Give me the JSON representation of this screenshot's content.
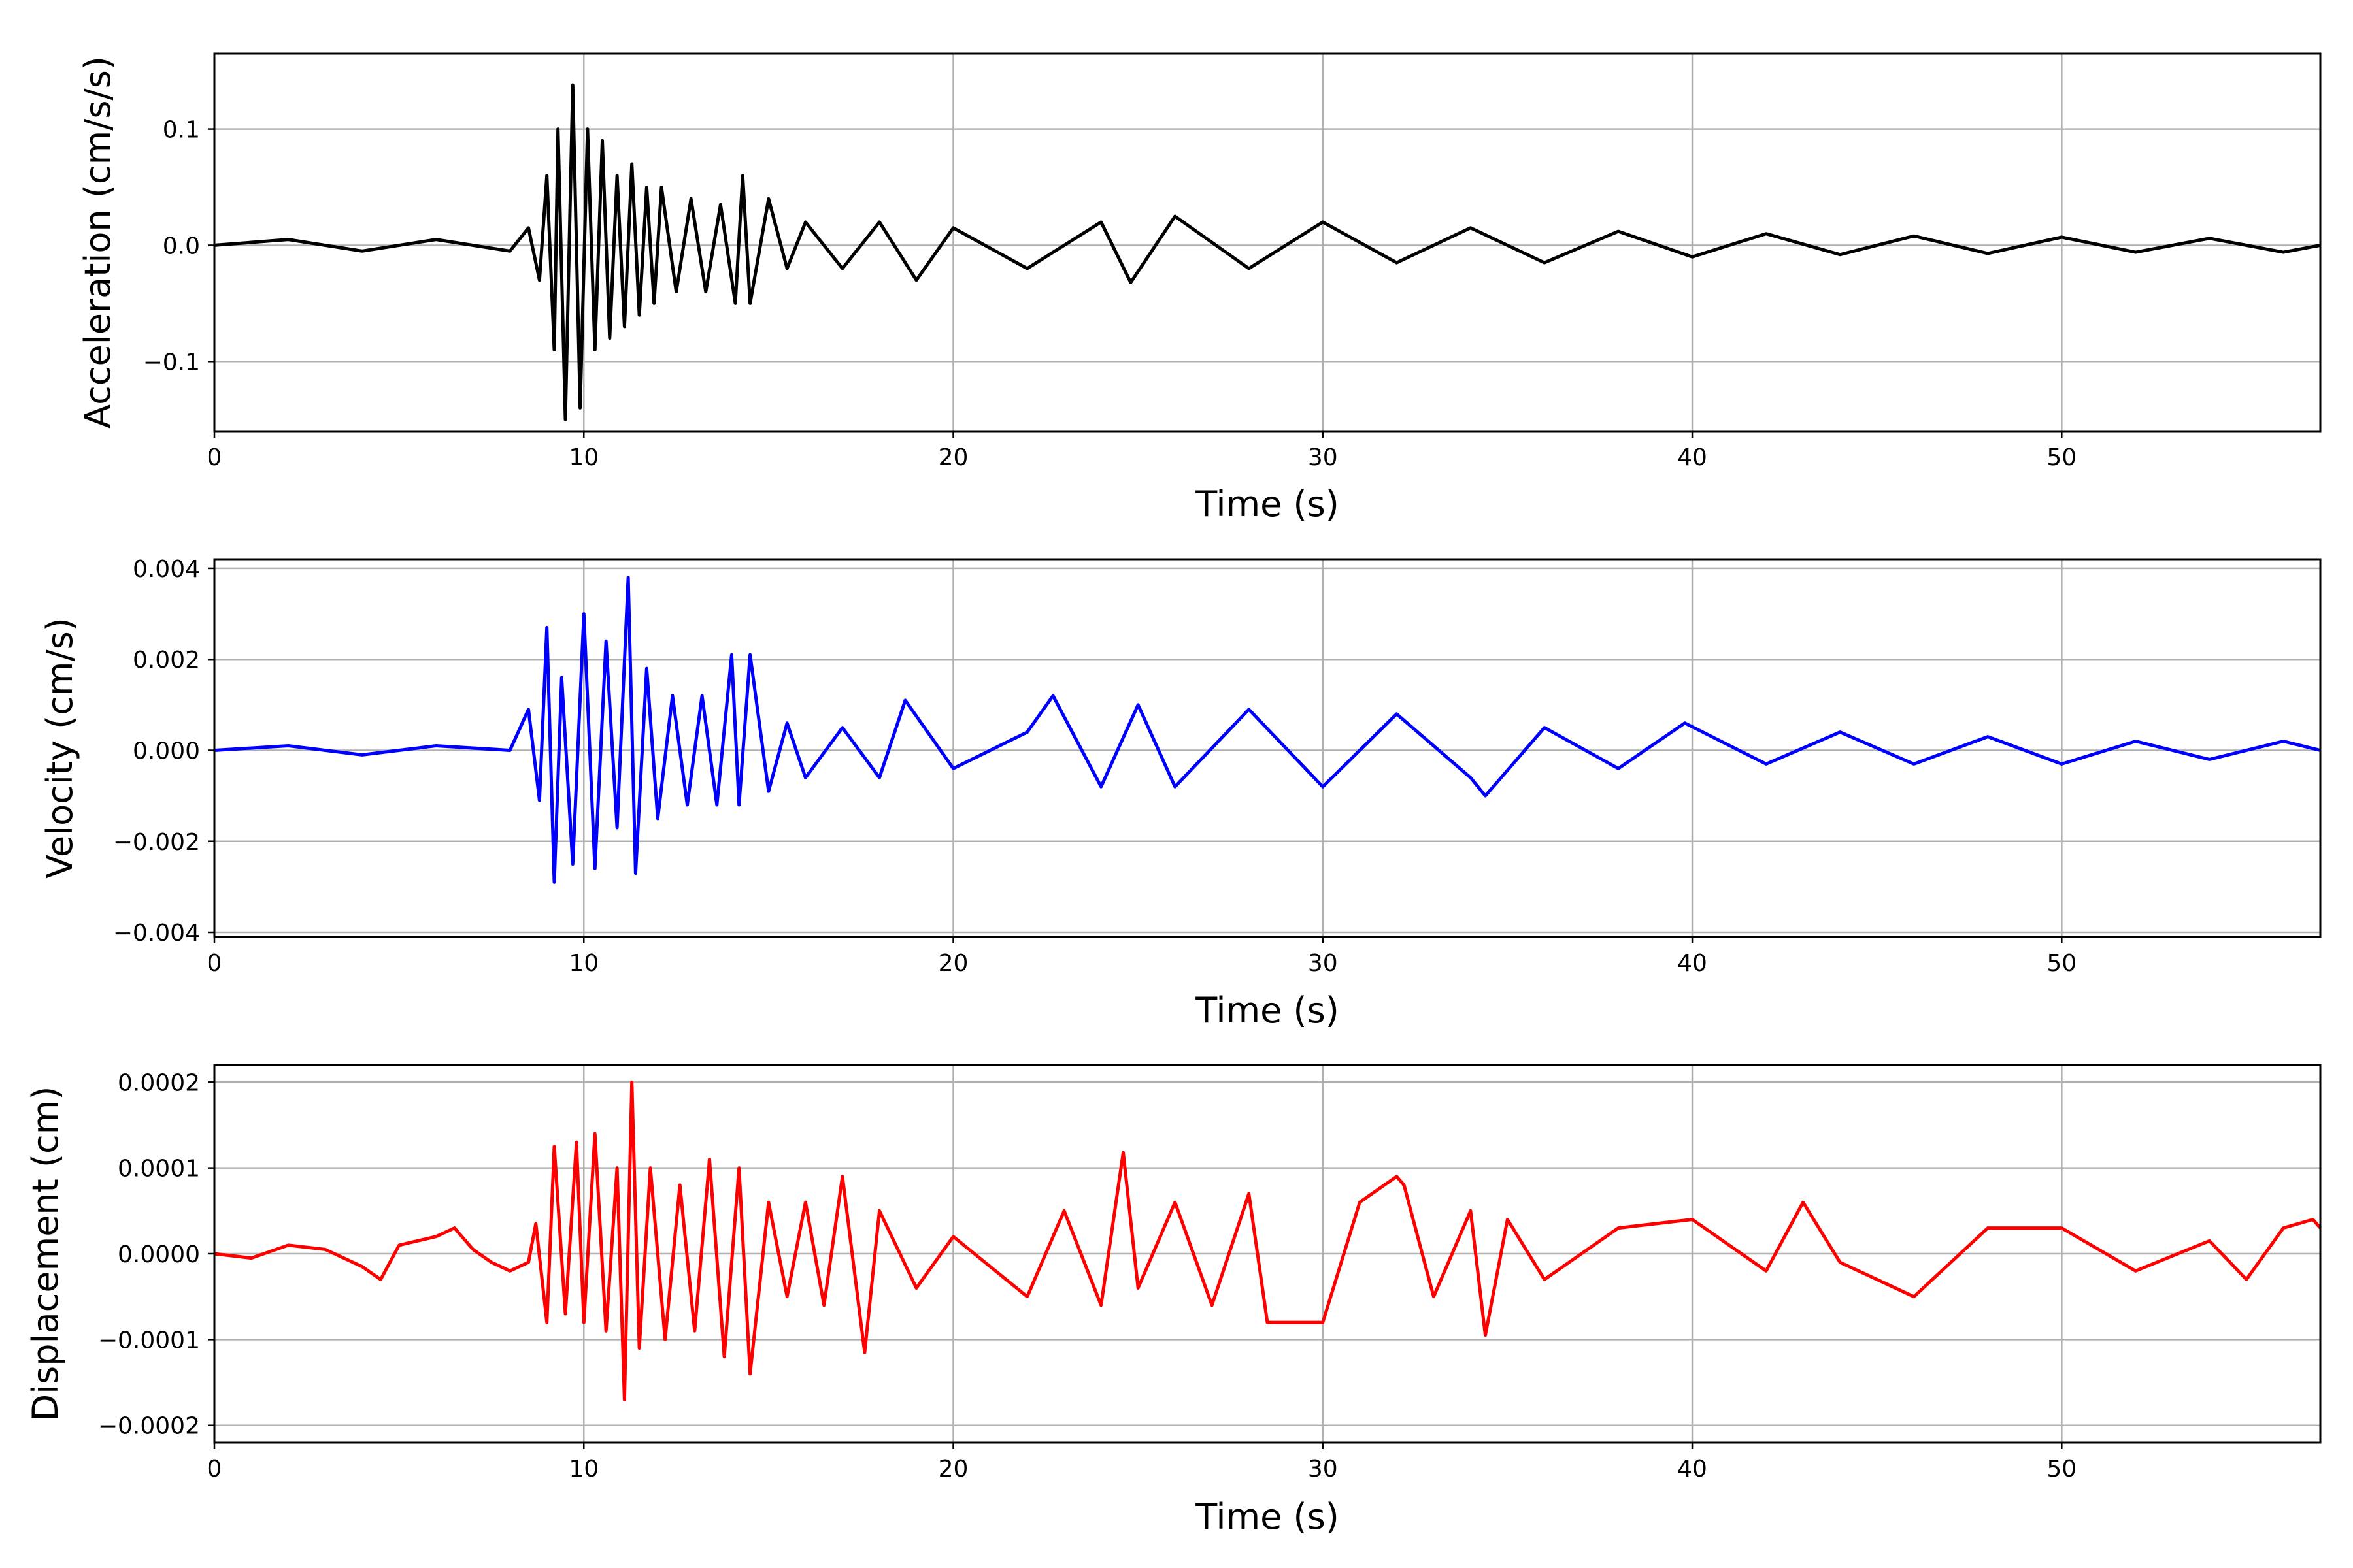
{
  "chart_data": [
    {
      "type": "line",
      "ylabel": "Acceleration (cm/s/s)",
      "xlabel": "Time (s)",
      "xlim": [
        0,
        57
      ],
      "ylim": [
        -0.16,
        0.165
      ],
      "xticks": [
        0,
        10,
        20,
        30,
        40,
        50
      ],
      "xtick_labels": [
        "0",
        "10",
        "20",
        "30",
        "40",
        "50"
      ],
      "yticks": [
        -0.1,
        0.0,
        0.1
      ],
      "ytick_labels": [
        "−0.1",
        "0.0",
        "0.1"
      ],
      "grid": true,
      "color": "#000000",
      "series": [
        {
          "x": [
            0,
            2,
            4,
            6,
            8,
            8.5,
            8.8,
            9.0,
            9.2,
            9.3,
            9.5,
            9.7,
            9.9,
            10.1,
            10.3,
            10.5,
            10.7,
            10.9,
            11.1,
            11.3,
            11.5,
            11.7,
            11.9,
            12.1,
            12.5,
            12.9,
            13.3,
            13.7,
            14.1,
            14.3,
            14.5,
            15.0,
            15.5,
            16.0,
            17.0,
            18.0,
            19.0,
            20.0,
            22.0,
            24.0,
            24.8,
            26.0,
            28.0,
            30.0,
            32.0,
            34.0,
            36.0,
            38.0,
            40.0,
            42.0,
            44.0,
            46.0,
            48.0,
            50.0,
            52.0,
            54.0,
            56.0,
            57.0
          ],
          "y": [
            0.0,
            0.005,
            -0.005,
            0.005,
            -0.005,
            0.015,
            -0.03,
            0.06,
            -0.09,
            0.1,
            -0.15,
            0.138,
            -0.14,
            0.1,
            -0.09,
            0.09,
            -0.08,
            0.06,
            -0.07,
            0.07,
            -0.06,
            0.05,
            -0.05,
            0.05,
            -0.04,
            0.04,
            -0.04,
            0.035,
            -0.05,
            0.06,
            -0.05,
            0.04,
            -0.02,
            0.02,
            -0.02,
            0.02,
            -0.03,
            0.015,
            -0.02,
            0.02,
            -0.032,
            0.025,
            -0.02,
            0.02,
            -0.015,
            0.015,
            -0.015,
            0.012,
            -0.01,
            0.01,
            -0.008,
            0.008,
            -0.007,
            0.007,
            -0.006,
            0.006,
            -0.006,
            0.0
          ]
        }
      ]
    },
    {
      "type": "line",
      "ylabel": "Velocity (cm/s)",
      "xlabel": "Time (s)",
      "xlim": [
        0,
        57
      ],
      "ylim": [
        -0.0041,
        0.0042
      ],
      "xticks": [
        0,
        10,
        20,
        30,
        40,
        50
      ],
      "xtick_labels": [
        "0",
        "10",
        "20",
        "30",
        "40",
        "50"
      ],
      "yticks": [
        -0.004,
        -0.002,
        0.0,
        0.002,
        0.004
      ],
      "ytick_labels": [
        "−0.004",
        "−0.002",
        "0.000",
        "0.002",
        "0.004"
      ],
      "grid": true,
      "color": "#0000ff",
      "series": [
        {
          "x": [
            0,
            2,
            4,
            6,
            8,
            8.5,
            8.8,
            9.0,
            9.2,
            9.4,
            9.7,
            10.0,
            10.3,
            10.6,
            10.9,
            11.2,
            11.4,
            11.7,
            12.0,
            12.4,
            12.8,
            13.2,
            13.6,
            14.0,
            14.2,
            14.5,
            15.0,
            15.5,
            16.0,
            17.0,
            18.0,
            18.7,
            20.0,
            22.0,
            22.7,
            24.0,
            25.0,
            26.0,
            28.0,
            30.0,
            32.0,
            34.0,
            34.4,
            36.0,
            38.0,
            39.8,
            42.0,
            44.0,
            46.0,
            48.0,
            50.0,
            52.0,
            54.0,
            56.0,
            57.0
          ],
          "y": [
            0.0,
            0.0001,
            -0.0001,
            0.0001,
            0.0,
            0.0009,
            -0.0011,
            0.0027,
            -0.0029,
            0.0016,
            -0.0025,
            0.003,
            -0.0026,
            0.0024,
            -0.0017,
            0.0038,
            -0.0027,
            0.0018,
            -0.0015,
            0.0012,
            -0.0012,
            0.0012,
            -0.0012,
            0.0021,
            -0.0012,
            0.0021,
            -0.0009,
            0.0006,
            -0.0006,
            0.0005,
            -0.0006,
            0.0011,
            -0.0004,
            0.0004,
            0.0012,
            -0.0008,
            0.001,
            -0.0008,
            0.0009,
            -0.0008,
            0.0008,
            -0.0006,
            -0.001,
            0.0005,
            -0.0004,
            0.0006,
            -0.0003,
            0.0004,
            -0.0003,
            0.0003,
            -0.0003,
            0.0002,
            -0.0002,
            0.0002,
            0.0
          ]
        }
      ]
    },
    {
      "type": "line",
      "ylabel": "Displacement (cm)",
      "xlabel": "Time (s)",
      "xlim": [
        0,
        57
      ],
      "ylim": [
        -0.00022,
        0.00022
      ],
      "xticks": [
        0,
        10,
        20,
        30,
        40,
        50
      ],
      "xtick_labels": [
        "0",
        "10",
        "20",
        "30",
        "40",
        "50"
      ],
      "yticks": [
        -0.0002,
        -0.0001,
        0.0,
        0.0001,
        0.0002
      ],
      "ytick_labels": [
        "−0.0002",
        "−0.0001",
        "0.0000",
        "0.0001",
        "0.0002"
      ],
      "grid": true,
      "color": "#ff0000",
      "series": [
        {
          "x": [
            0,
            1,
            2,
            3,
            4,
            4.5,
            5,
            6,
            6.5,
            7,
            7.5,
            8,
            8.5,
            8.7,
            9.0,
            9.2,
            9.5,
            9.8,
            10.0,
            10.3,
            10.6,
            10.9,
            11.1,
            11.3,
            11.5,
            11.8,
            12.2,
            12.6,
            13.0,
            13.4,
            13.8,
            14.2,
            14.5,
            15.0,
            15.5,
            16.0,
            16.5,
            17.0,
            17.6,
            18.0,
            19.0,
            20.0,
            22.0,
            23.0,
            24.0,
            24.6,
            25.0,
            26.0,
            27.0,
            28.0,
            28.5,
            30.0,
            31.0,
            32.0,
            32.2,
            33.0,
            34.0,
            34.4,
            35.0,
            36.0,
            38.0,
            40.0,
            42.0,
            43.0,
            44.0,
            46.0,
            48.0,
            50.0,
            52.0,
            54.0,
            55.0,
            56.0,
            56.8,
            57.0
          ],
          "y": [
            0.0,
            -5e-06,
            1e-05,
            5e-06,
            -1.5e-05,
            -3e-05,
            1e-05,
            2e-05,
            3e-05,
            5e-06,
            -1e-05,
            -2e-05,
            -1e-05,
            3.5e-05,
            -8e-05,
            0.000125,
            -7e-05,
            0.00013,
            -8e-05,
            0.00014,
            -9e-05,
            0.0001,
            -0.00017,
            0.0002,
            -0.00011,
            0.0001,
            -0.0001,
            8e-05,
            -9e-05,
            0.00011,
            -0.00012,
            0.0001,
            -0.00014,
            6e-05,
            -5e-05,
            6e-05,
            -6e-05,
            9e-05,
            -0.000115,
            5e-05,
            -4e-05,
            2e-05,
            -5e-05,
            5e-05,
            -6e-05,
            0.000118,
            -4e-05,
            6e-05,
            -6e-05,
            7e-05,
            -8e-05,
            -8e-05,
            6e-05,
            9e-05,
            8e-05,
            -5e-05,
            5e-05,
            -9.5e-05,
            4e-05,
            -3e-05,
            3e-05,
            4e-05,
            -2e-05,
            6e-05,
            -1e-05,
            -5e-05,
            3e-05,
            3e-05,
            -2e-05,
            1.5e-05,
            -3e-05,
            3e-05,
            4e-05,
            3e-05
          ]
        }
      ]
    }
  ]
}
